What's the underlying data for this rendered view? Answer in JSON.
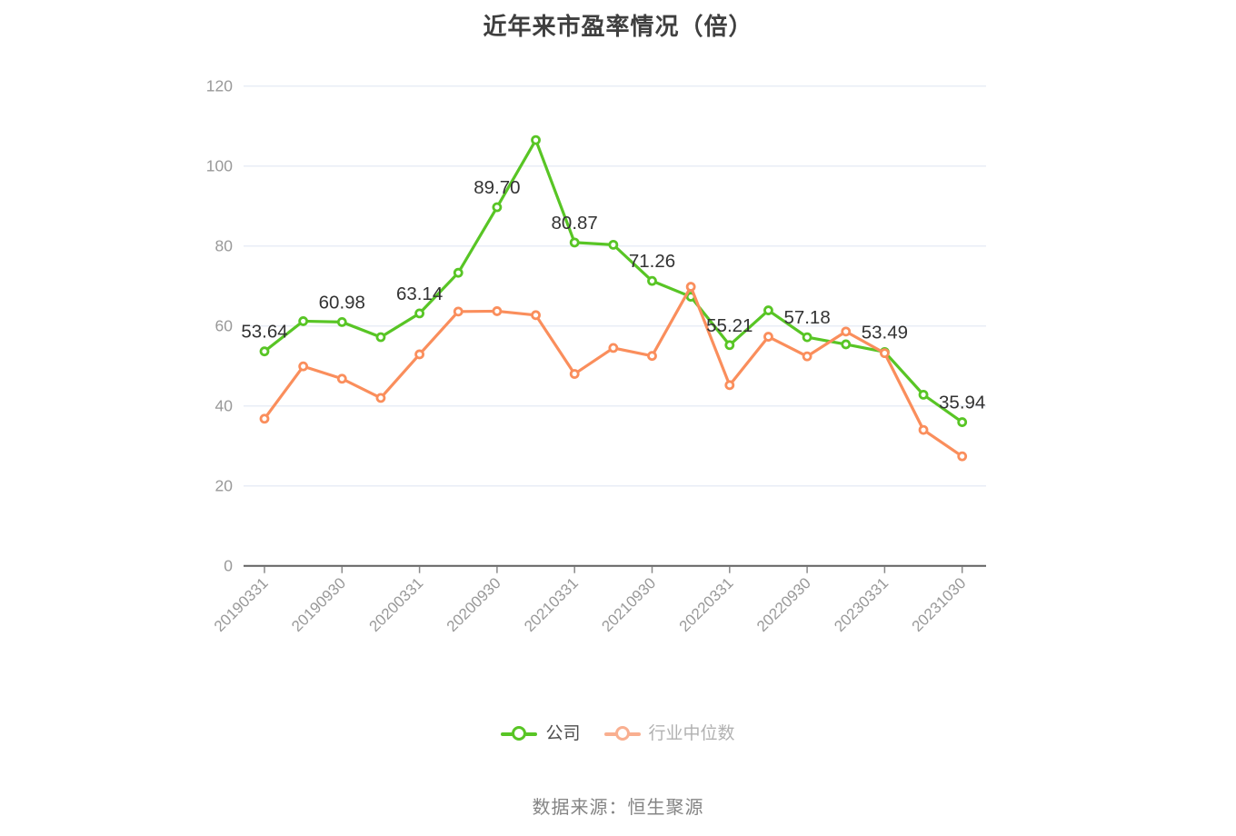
{
  "title": "近年来市盈率情况（倍）",
  "source": "数据来源：恒生聚源",
  "colors": {
    "background": "#ffffff",
    "title": "#3f3f3f",
    "grid": "#e8edf6",
    "axis_line": "#606060",
    "tick": "#8a8a8a",
    "tick_label": "#999999",
    "value_label": "#333333",
    "company_series": "#58c525",
    "industry_series": "#fa8e5c",
    "source_text": "#848484"
  },
  "legend": {
    "items": [
      {
        "id": "company",
        "label": "公司",
        "icon_color": "#58c525",
        "text_color": "#4d4d4d"
      },
      {
        "id": "industry-median",
        "label": "行业中位数",
        "icon_color": "#f9af90",
        "text_color": "#b1b1b1"
      }
    ]
  },
  "chart_data": {
    "type": "line",
    "title": "近年来市盈率情况（倍）",
    "xlabel": "",
    "ylabel": "",
    "ylim": [
      0,
      120
    ],
    "yticks": [
      0,
      20,
      40,
      60,
      80,
      100,
      120
    ],
    "grid": true,
    "legend_position": "bottom",
    "n_points": 19,
    "x_labels": [
      "20190331",
      "20190930",
      "20200331",
      "20200930",
      "20210331",
      "20210930",
      "20220331",
      "20220930",
      "20230331",
      "20231030"
    ],
    "x_label_point_indices": [
      0,
      2,
      4,
      6,
      8,
      10,
      12,
      14,
      16,
      18
    ],
    "series": [
      {
        "name": "公司",
        "id": "company",
        "color": "#58c525",
        "values": [
          53.64,
          61.2,
          60.98,
          57.2,
          63.14,
          73.3,
          89.7,
          106.5,
          80.87,
          80.3,
          71.26,
          67.3,
          55.21,
          63.9,
          57.18,
          55.4,
          53.49,
          42.8,
          35.94
        ],
        "point_labels": [
          {
            "i": 0,
            "text": "53.64"
          },
          {
            "i": 2,
            "text": "60.98"
          },
          {
            "i": 4,
            "text": "63.14"
          },
          {
            "i": 6,
            "text": "89.70"
          },
          {
            "i": 8,
            "text": "80.87"
          },
          {
            "i": 10,
            "text": "71.26"
          },
          {
            "i": 12,
            "text": "55.21"
          },
          {
            "i": 14,
            "text": "57.18"
          },
          {
            "i": 16,
            "text": "53.49"
          },
          {
            "i": 18,
            "text": "35.94"
          }
        ]
      },
      {
        "name": "行业中位数",
        "id": "industry-median",
        "color": "#fa8e5c",
        "values": [
          36.8,
          49.9,
          46.8,
          42.0,
          52.9,
          63.6,
          63.7,
          62.7,
          48.0,
          54.5,
          52.5,
          69.8,
          45.2,
          57.3,
          52.4,
          58.6,
          53.2,
          34.0,
          27.4
        ],
        "point_labels": []
      }
    ]
  }
}
